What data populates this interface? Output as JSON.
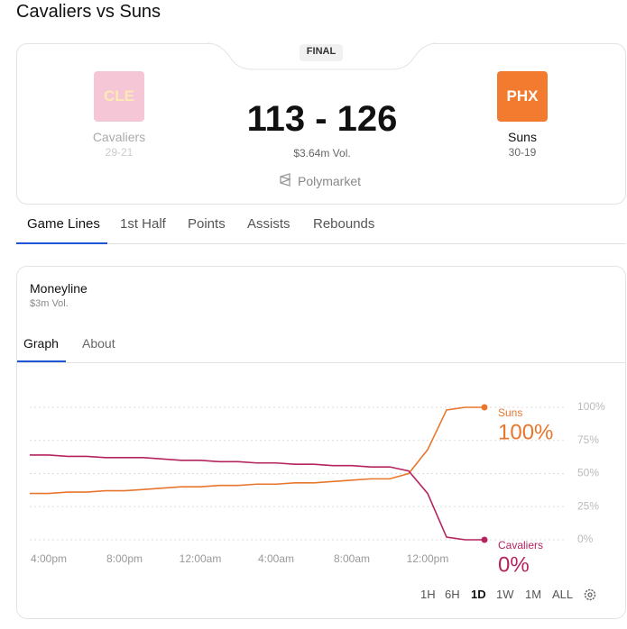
{
  "page": {
    "title": "Cavaliers vs Suns"
  },
  "game": {
    "status": "FINAL",
    "home": {
      "abbr": "CLE",
      "name": "Cavaliers",
      "record": "29-21"
    },
    "away": {
      "abbr": "PHX",
      "name": "Suns",
      "record": "30-19"
    },
    "score": "113 - 126",
    "volume": "$3.64m Vol.",
    "source": "Polymarket"
  },
  "tabs": [
    "Game Lines",
    "1st Half",
    "Points",
    "Assists",
    "Rebounds"
  ],
  "market": {
    "title": "Moneyline",
    "volume": "$3m Vol.",
    "tabs": [
      "Graph",
      "About"
    ]
  },
  "ranges": [
    "1H",
    "6H",
    "1D",
    "1W",
    "1M",
    "ALL"
  ],
  "chart_data": {
    "type": "line",
    "categories": [
      null,
      "4:00pm",
      null,
      null,
      null,
      "8:00pm",
      null,
      null,
      null,
      "12:00am",
      null,
      null,
      null,
      "4:00am",
      null,
      null,
      null,
      "8:00am",
      null,
      null,
      null,
      "12:00pm",
      null,
      null,
      null
    ],
    "series": [
      {
        "name": "Suns",
        "color": "#e8772e",
        "values": [
          35,
          35,
          36,
          36,
          37,
          37,
          38,
          39,
          40,
          40,
          41,
          41,
          42,
          42,
          43,
          43,
          44,
          45,
          46,
          46,
          50,
          68,
          98,
          100,
          100
        ],
        "value_labels": [
          null,
          null,
          null,
          null,
          null,
          null,
          null,
          null,
          null,
          null,
          null,
          null,
          null,
          null,
          null,
          null,
          null,
          null,
          null,
          null,
          null,
          null,
          null,
          null,
          "100%"
        ]
      },
      {
        "name": "Cavaliers",
        "color": "#b5245f",
        "values": [
          64,
          64,
          63,
          63,
          62,
          62,
          62,
          61,
          60,
          60,
          59,
          59,
          58,
          58,
          57,
          57,
          56,
          56,
          55,
          55,
          52,
          35,
          2,
          0,
          0
        ],
        "value_labels": [
          null,
          null,
          null,
          null,
          null,
          null,
          null,
          null,
          null,
          null,
          null,
          null,
          null,
          null,
          null,
          null,
          null,
          null,
          null,
          null,
          null,
          null,
          null,
          null,
          "0%"
        ]
      }
    ],
    "ylim": [
      0,
      100
    ],
    "yticks": [
      {
        "value": 0,
        "label": "0%"
      },
      {
        "value": 25,
        "label": "25%"
      },
      {
        "value": 50,
        "label": "50%"
      },
      {
        "value": 75,
        "label": "75%"
      },
      {
        "value": 100,
        "label": "100%"
      }
    ],
    "grid": true
  }
}
